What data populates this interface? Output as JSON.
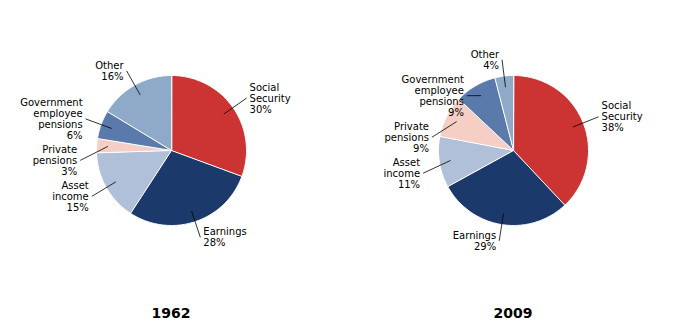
{
  "chart_data": [
    {
      "type": "pie",
      "title": "1962",
      "categories": [
        "Social\nSecurity",
        "Earnings",
        "Asset\nincome",
        "Private\npensions",
        "Government\nemployee\npensions",
        "Other"
      ],
      "values": [
        30,
        28,
        15,
        3,
        6,
        16
      ],
      "value_labels": [
        "30%",
        "28%",
        "15%",
        "3%",
        "6%",
        "16%"
      ],
      "colors": [
        "#cc3333",
        "#1b3a6b",
        "#b0c0d8",
        "#f5cfc5",
        "#5a7aab",
        "#8faac8"
      ],
      "data_labels": true
    },
    {
      "type": "pie",
      "title": "2009",
      "categories": [
        "Social\nSecurity",
        "Earnings",
        "Asset\nincome",
        "Private\npensions",
        "Government\nemployee\npensions",
        "Other"
      ],
      "values": [
        38,
        29,
        11,
        9,
        9,
        4
      ],
      "value_labels": [
        "38%",
        "29%",
        "11%",
        "9%",
        "9%",
        "4%"
      ],
      "colors": [
        "#cc3333",
        "#1b3a6b",
        "#b0c0d8",
        "#f5cfc5",
        "#5a7aab",
        "#8faac8"
      ],
      "data_labels": true
    }
  ]
}
